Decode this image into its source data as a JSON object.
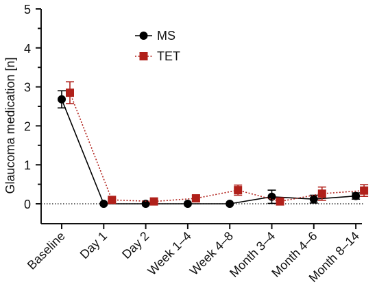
{
  "chart_data": {
    "type": "line",
    "title": "",
    "xlabel": "",
    "ylabel": "Glaucoma medication [n]",
    "ylim": [
      0,
      5
    ],
    "yticks": [
      "0",
      "1",
      "2",
      "3",
      "4",
      "5"
    ],
    "categories": [
      "Baseline",
      "Day 1",
      "Day 2",
      "Week 1–4",
      "Week 4–8",
      "Month 3–4",
      "Month 4–6",
      "Month 8–14"
    ],
    "reference_line": {
      "y": 0,
      "style": "dotted"
    },
    "legend_position": "top-center",
    "grid": false,
    "series": [
      {
        "name": "MS",
        "color": "#000000",
        "marker": "circle",
        "line_style": "solid",
        "values": [
          2.68,
          0,
          0,
          0,
          0,
          0.18,
          0.12,
          0.2
        ],
        "errors": [
          0.22,
          0,
          0,
          0,
          0,
          0.17,
          0.1,
          0.08
        ]
      },
      {
        "name": "TET",
        "color": "#b0201a",
        "marker": "square",
        "line_style": "dotted",
        "values": [
          2.85,
          0.1,
          0.06,
          0.14,
          0.35,
          0.06,
          0.26,
          0.34
        ],
        "errors": [
          0.28,
          0.03,
          0.03,
          0.07,
          0.13,
          0.03,
          0.17,
          0.15
        ]
      }
    ]
  }
}
